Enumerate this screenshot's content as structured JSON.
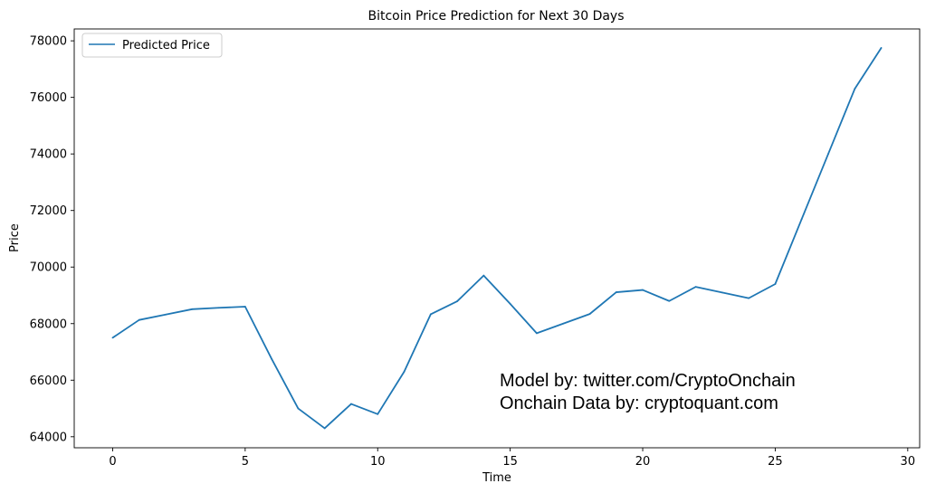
{
  "chart_data": {
    "type": "line",
    "title": "Bitcoin Price Prediction for Next 30 Days",
    "xlabel": "Time",
    "ylabel": "Price",
    "xlim": [
      -1.45,
      30.45
    ],
    "ylim": [
      63610,
      78420
    ],
    "xticks": [
      0,
      5,
      10,
      15,
      20,
      25,
      30
    ],
    "xtick_labels": [
      "0",
      "5",
      "10",
      "15",
      "20",
      "25",
      "30"
    ],
    "yticks": [
      64000,
      66000,
      68000,
      70000,
      72000,
      74000,
      76000,
      78000
    ],
    "ytick_labels": [
      "64000",
      "66000",
      "68000",
      "70000",
      "72000",
      "74000",
      "76000",
      "78000"
    ],
    "grid": false,
    "legend_position": "top-left",
    "series": [
      {
        "name": "Predicted Price",
        "color": "#1f77b4",
        "x": [
          0,
          1,
          2,
          3,
          4,
          5,
          6,
          7,
          8,
          9,
          10,
          11,
          12,
          13,
          14,
          15,
          16,
          17,
          18,
          19,
          20,
          21,
          22,
          23,
          24,
          25,
          26,
          27,
          28,
          29
        ],
        "values": [
          67500,
          68130,
          68320,
          68510,
          68560,
          68600,
          66750,
          65000,
          64300,
          65160,
          64800,
          66300,
          68330,
          68790,
          69700,
          68700,
          67660,
          68000,
          68340,
          69110,
          69190,
          68800,
          69300,
          69100,
          68900,
          69400,
          71700,
          74000,
          76300,
          77750
        ]
      }
    ],
    "annotations": [
      "Model by: twitter.com/CryptoOnchain",
      "Onchain Data by: cryptoquant.com"
    ]
  }
}
